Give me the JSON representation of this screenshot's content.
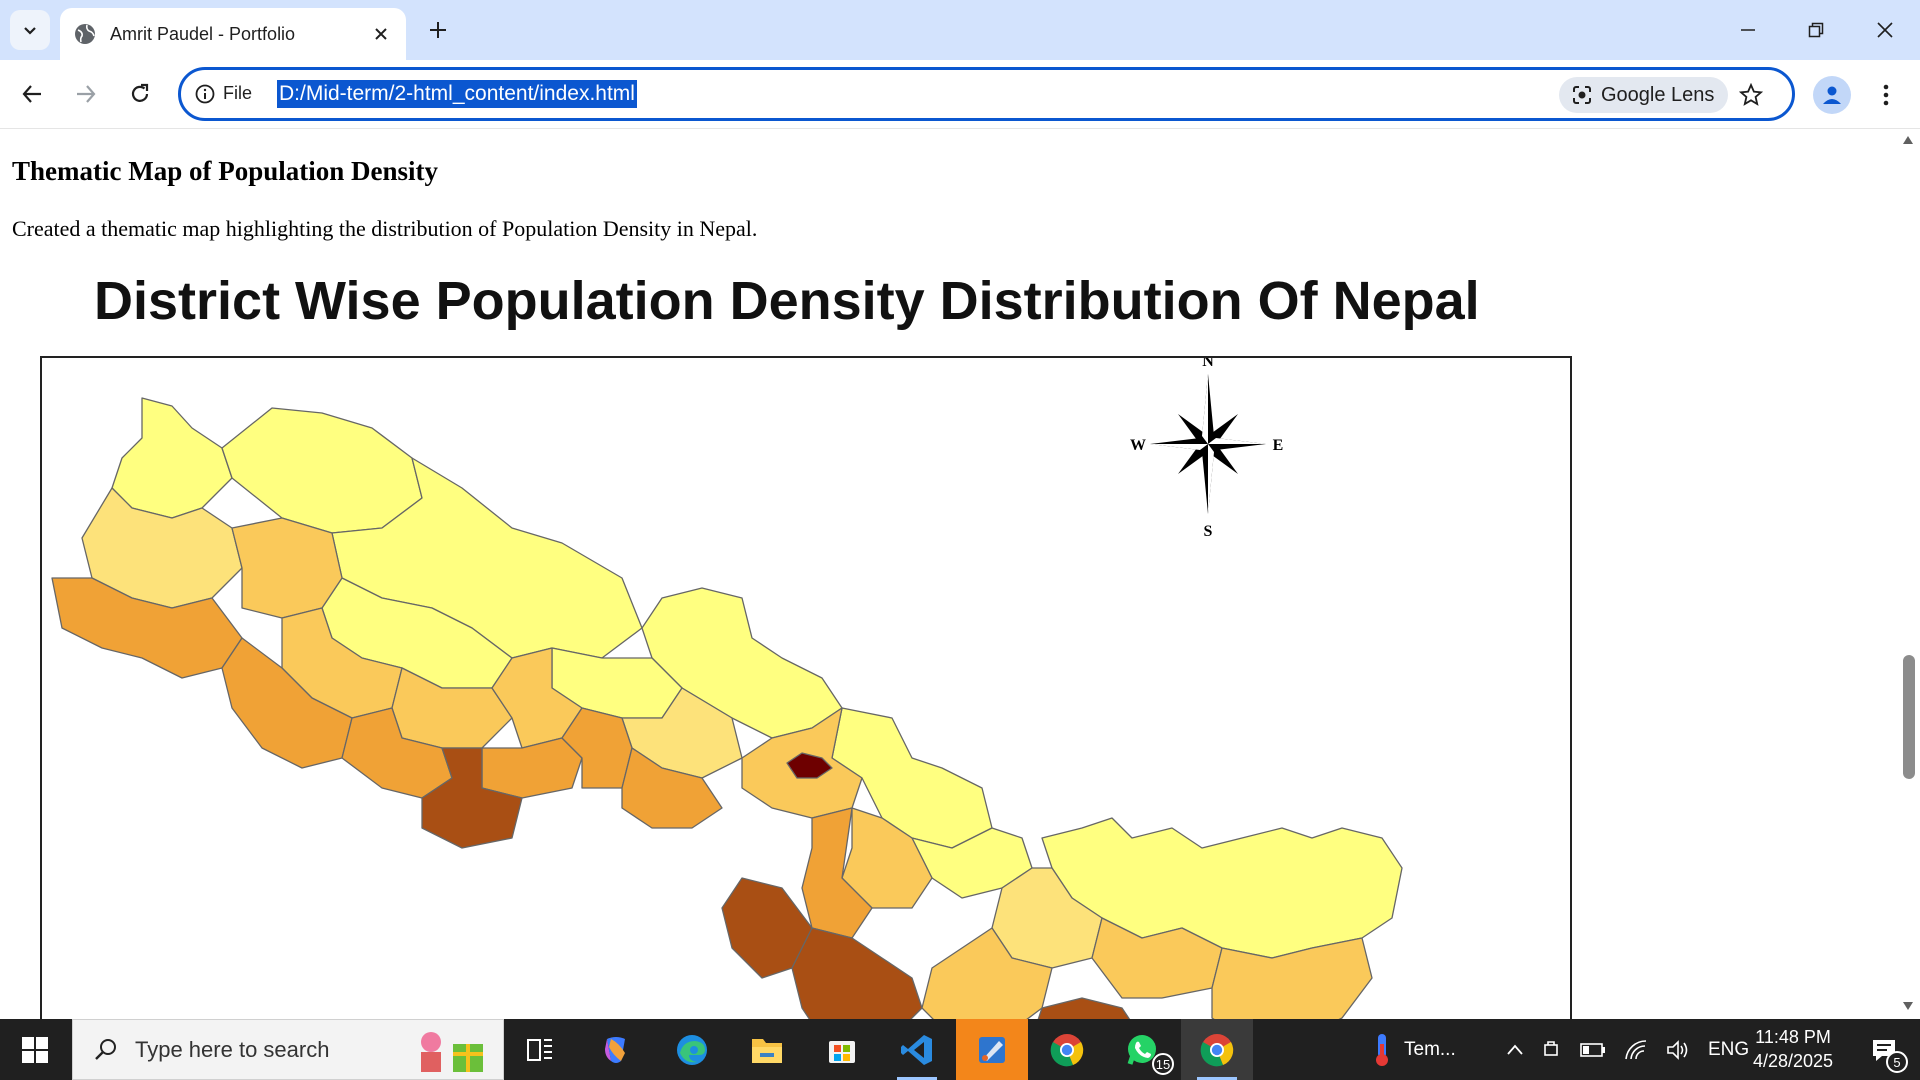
{
  "browser": {
    "tab_title": "Amrit Paudel - Portfolio",
    "omnibox": {
      "scheme_label": "File",
      "url": "D:/Mid-term/2-html_content/index.html",
      "lens_label": "Google Lens"
    }
  },
  "page": {
    "heading": "Thematic Map of Population Density",
    "description": "Created a thematic map highlighting the distribution of Population Density in Nepal.",
    "map": {
      "title": "District Wise Population Density Distribution Of Nepal",
      "compass": {
        "n": "N",
        "s": "S",
        "e": "E",
        "w": "W"
      },
      "colors": {
        "lowest": "#ffff80",
        "low": "#fde27a",
        "medium": "#fac95a",
        "medium_high": "#f0a236",
        "high": "#a94f14",
        "highest": "#6e0000",
        "border": "#666666"
      }
    }
  },
  "taskbar": {
    "search_placeholder": "Type here to search",
    "weather_label": "Tem...",
    "language": "ENG",
    "time": "11:48 PM",
    "date": "4/28/2025",
    "whatsapp_badge": "15",
    "notification_count": "5",
    "icons": [
      "task-view-icon",
      "copilot-icon",
      "edge-icon",
      "file-explorer-icon",
      "microsoft-store-icon",
      "vscode-icon",
      "paint-icon",
      "chrome-icon",
      "whatsapp-icon",
      "chrome-active-icon"
    ]
  }
}
